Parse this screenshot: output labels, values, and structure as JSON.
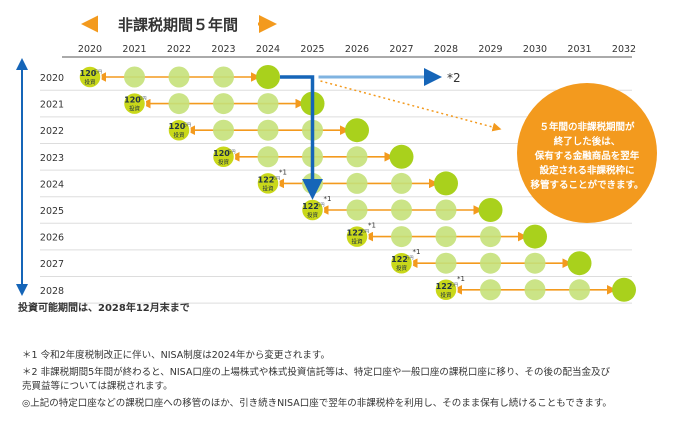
{
  "title": "非課税期間５年間",
  "years": [
    "2020",
    "2021",
    "2022",
    "2023",
    "2024",
    "2025",
    "2026",
    "2027",
    "2028",
    "2029",
    "2030",
    "2031",
    "2032"
  ],
  "rows": [
    {
      "year": "2020",
      "amount": "120",
      "note": ""
    },
    {
      "year": "2021",
      "amount": "120",
      "note": ""
    },
    {
      "year": "2022",
      "amount": "120",
      "note": ""
    },
    {
      "year": "2023",
      "amount": "120",
      "note": ""
    },
    {
      "year": "2024",
      "amount": "122",
      "note": "*1"
    },
    {
      "year": "2025",
      "amount": "122",
      "note": "*1"
    },
    {
      "year": "2026",
      "amount": "122",
      "note": "*1"
    },
    {
      "year": "2027",
      "amount": "122",
      "note": "*1"
    },
    {
      "year": "2028",
      "amount": "122",
      "note": "*1"
    }
  ],
  "unit_label": "万円",
  "invest_label": "投資",
  "rollover_note": "*2",
  "callout_text": [
    "５年間の非課税期間が",
    "終了した後は、",
    "保有する金融商品を翌年",
    "設定される非課税枠に",
    "移管することができます。"
  ],
  "investment_period_text": "投資可能期間は、2028年12月末まで",
  "footnotes": [
    "＊1 令和2年度税制改正に伴い、NISA制度は2024年から変更されます。",
    "＊2 非課税期間5年間が終わると、NISA口座の上場株式や株式投資信託等は、特定口座や一般口座の課税口座に移り、その後の配当金及び",
    "売買益等については課税されます。",
    "◎上記の特定口座などの課税口座への移管のほか、引き続きNISA口座で翌年の非課税枠を利用し、そのまま保有し続けることもできます。"
  ],
  "colors": {
    "orange": "#f39a1e",
    "green_light": "#c5e17a",
    "green_dark": "#a9d11c",
    "blue_dark": "#1565b8",
    "blue_light": "#7fb3e0",
    "coin": "#c9d81a"
  }
}
